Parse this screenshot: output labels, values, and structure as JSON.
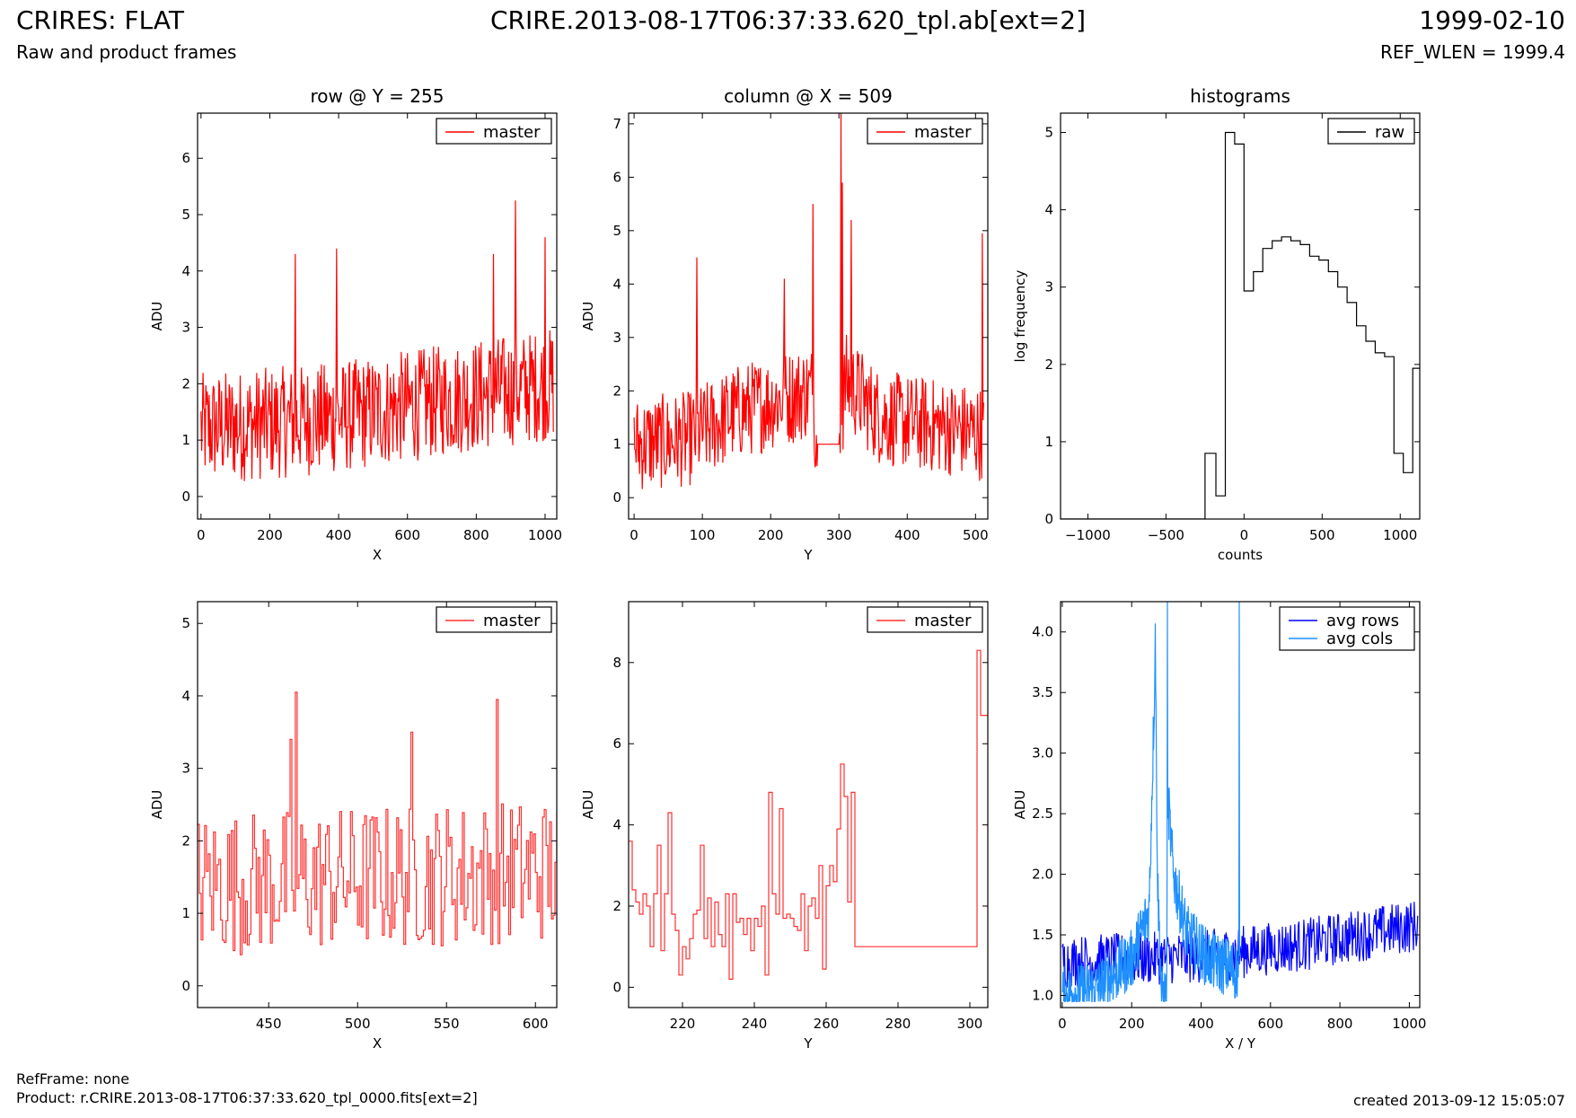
{
  "header": {
    "title": "CRIRES: FLAT",
    "subtitle": "Raw and product frames",
    "filename": "CRIRE.2013-08-17T06:37:33.620_tpl.ab[ext=2]",
    "date": "1999-02-10",
    "ref_wlen": "REF_WLEN = 1999.4"
  },
  "footer": {
    "refframe": "RefFrame: none",
    "product": "Product: r.CRIRE.2013-08-17T06:37:33.620_tpl_0000.fits[ext=2]",
    "created": "created 2013-09-12 15:05:07"
  },
  "colors": {
    "master": "#ff0000",
    "raw": "#000000",
    "avg_rows": "#0000ff",
    "avg_cols": "#1e90ff"
  },
  "chart_data": [
    {
      "id": "row",
      "type": "line",
      "title": "row @ Y = 255",
      "xlabel": "X",
      "ylabel": "ADU",
      "xlim": [
        -10,
        1034
      ],
      "ylim": [
        -0.4,
        6.8
      ],
      "xticks": [
        0,
        200,
        400,
        600,
        800,
        1000
      ],
      "yticks": [
        0,
        1,
        2,
        3,
        4,
        5,
        6
      ],
      "legend": "top-right",
      "series": [
        {
          "name": "master",
          "color": "#ff0000",
          "style": "noise",
          "x0": 0,
          "x1": 1024,
          "step": 2,
          "base": [
            [
              0,
              1.2
            ],
            [
              400,
              1.4
            ],
            [
              800,
              1.8
            ],
            [
              1024,
              2.0
            ]
          ],
          "noise": 1.0,
          "min": 0.1,
          "max": 4.6,
          "spikes": [
            [
              275,
              4.3
            ],
            [
              395,
              4.4
            ],
            [
              915,
              5.25
            ],
            [
              1000,
              4.6
            ],
            [
              850,
              4.3
            ]
          ]
        }
      ]
    },
    {
      "id": "column",
      "type": "line",
      "title": "column @ X = 509",
      "xlabel": "Y",
      "ylabel": "ADU",
      "xlim": [
        -8,
        518
      ],
      "ylim": [
        -0.4,
        7.2
      ],
      "xticks": [
        0,
        100,
        200,
        300,
        400,
        500
      ],
      "yticks": [
        0,
        1,
        2,
        3,
        4,
        5,
        6,
        7
      ],
      "legend": "top-right",
      "series": [
        {
          "name": "master",
          "color": "#ff0000",
          "style": "noise",
          "x0": 0,
          "x1": 512,
          "step": 1,
          "base": [
            [
              0,
              1.0
            ],
            [
              80,
              1.1
            ],
            [
              150,
              1.6
            ],
            [
              260,
              2.0
            ],
            [
              269,
              1.0
            ],
            [
              300,
              1.0
            ],
            [
              310,
              2.2
            ],
            [
              360,
              1.5
            ],
            [
              512,
              1.2
            ]
          ],
          "noise": 0.9,
          "min": 0.15,
          "max": 4.5,
          "flat": [
            [
              269,
              300,
              1.0
            ]
          ],
          "spikes": [
            [
              92,
              4.5
            ],
            [
              220,
              4.1
            ],
            [
              262,
              5.5
            ],
            [
              303,
              7.2
            ],
            [
              305,
              5.9
            ],
            [
              318,
              5.2
            ],
            [
              510,
              4.95
            ]
          ]
        }
      ]
    },
    {
      "id": "histogram",
      "type": "step",
      "title": "histograms",
      "xlabel": "counts",
      "ylabel": "log frequency",
      "xlim": [
        -1175,
        1125
      ],
      "ylim": [
        0,
        5.25
      ],
      "xticks": [
        -1000,
        -500,
        0,
        500,
        1000
      ],
      "yticks": [
        0,
        1,
        2,
        3,
        4,
        5
      ],
      "legend": "top-right",
      "series": [
        {
          "name": "raw",
          "color": "#000000",
          "edges": [
            -1175,
            -250,
            -180,
            -120,
            -60,
            0,
            60,
            120,
            180,
            240,
            300,
            360,
            420,
            480,
            540,
            600,
            660,
            720,
            780,
            840,
            900,
            960,
            1020,
            1080,
            1125
          ],
          "values": [
            0,
            0.85,
            0.3,
            5.0,
            4.85,
            2.95,
            3.2,
            3.5,
            3.6,
            3.65,
            3.6,
            3.55,
            3.4,
            3.35,
            3.2,
            3.0,
            2.8,
            2.5,
            2.3,
            2.15,
            2.1,
            0.85,
            0.6,
            1.95
          ]
        }
      ]
    },
    {
      "id": "row-zoom",
      "type": "step",
      "xlabel": "X",
      "ylabel": "ADU",
      "xlim": [
        410,
        612
      ],
      "ylim": [
        -0.3,
        5.3
      ],
      "xticks": [
        450,
        500,
        550,
        600
      ],
      "yticks": [
        0,
        1,
        2,
        3,
        4,
        5
      ],
      "legend": "top-right",
      "series": [
        {
          "name": "master",
          "color": "#ff3030",
          "style": "noise",
          "x0": 410,
          "x1": 612,
          "step": 1,
          "base": [
            [
              410,
              1.4
            ],
            [
              612,
              1.6
            ]
          ],
          "noise": 1.0,
          "min": 0.1,
          "max": 3.5,
          "spikes": [
            [
              465,
              4.05
            ],
            [
              530,
              3.5
            ],
            [
              578,
              3.95
            ],
            [
              462,
              3.4
            ]
          ]
        }
      ]
    },
    {
      "id": "column-zoom",
      "type": "step",
      "xlabel": "Y",
      "ylabel": "ADU",
      "xlim": [
        205,
        305
      ],
      "ylim": [
        -0.5,
        9.5
      ],
      "xticks": [
        220,
        240,
        260,
        280,
        300
      ],
      "yticks": [
        0,
        2,
        4,
        6,
        8
      ],
      "legend": "top-right",
      "series": [
        {
          "name": "master",
          "color": "#ff3030",
          "x": [
            205,
            206,
            207,
            208,
            209,
            210,
            211,
            212,
            213,
            214,
            215,
            216,
            217,
            218,
            219,
            220,
            221,
            222,
            223,
            224,
            225,
            226,
            227,
            228,
            229,
            230,
            231,
            232,
            233,
            234,
            235,
            236,
            237,
            238,
            239,
            240,
            241,
            242,
            243,
            244,
            245,
            246,
            247,
            248,
            249,
            250,
            251,
            252,
            253,
            254,
            255,
            256,
            257,
            258,
            259,
            260,
            261,
            262,
            263,
            264,
            265,
            266,
            267,
            268,
            269,
            302,
            303,
            304,
            305
          ],
          "y": [
            3.6,
            2.4,
            2.1,
            1.8,
            2.3,
            2.0,
            1.0,
            2.3,
            3.5,
            0.9,
            2.3,
            4.3,
            1.8,
            1.4,
            0.3,
            1.0,
            0.7,
            1.2,
            1.8,
            1.9,
            3.5,
            1.2,
            2.2,
            1.0,
            2.1,
            1.3,
            1.0,
            2.3,
            0.2,
            2.3,
            1.6,
            1.7,
            1.3,
            1.7,
            0.9,
            1.7,
            1.5,
            2.0,
            0.3,
            4.8,
            2.3,
            1.8,
            4.4,
            1.7,
            1.8,
            1.7,
            1.5,
            1.4,
            2.3,
            0.9,
            2.0,
            2.2,
            1.7,
            3.0,
            0.45,
            2.5,
            3.0,
            2.6,
            3.9,
            5.5,
            4.7,
            2.1,
            4.8,
            1.0,
            1.0,
            8.3,
            6.7,
            6.7,
            6.7
          ]
        }
      ]
    },
    {
      "id": "averages",
      "type": "line",
      "xlabel": "X / Y",
      "ylabel": "ADU",
      "xlim": [
        -5,
        1030
      ],
      "ylim": [
        0.9,
        4.25
      ],
      "xticks": [
        0,
        200,
        400,
        600,
        800,
        1000
      ],
      "yticks": [
        1.0,
        1.5,
        2.0,
        2.5,
        3.0,
        3.5,
        4.0
      ],
      "legend": "top-right",
      "series": [
        {
          "name": "avg rows",
          "color": "#0000ff",
          "style": "noise",
          "x0": 0,
          "x1": 1024,
          "step": 2,
          "base": [
            [
              0,
              1.28
            ],
            [
              400,
              1.32
            ],
            [
              700,
              1.42
            ],
            [
              1024,
              1.58
            ]
          ],
          "noise": 0.22,
          "min": 1.05,
          "max": 1.85
        },
        {
          "name": "avg cols",
          "color": "#1e90ff",
          "style": "noise",
          "x0": 0,
          "x1": 512,
          "step": 1,
          "base": [
            [
              0,
              1.0
            ],
            [
              100,
              1.05
            ],
            [
              200,
              1.3
            ],
            [
              250,
              1.7
            ],
            [
              268,
              3.8
            ],
            [
              275,
              1.9
            ],
            [
              286,
              1.0
            ],
            [
              300,
              1.0
            ],
            [
              305,
              2.6
            ],
            [
              320,
              2.0
            ],
            [
              360,
              1.5
            ],
            [
              420,
              1.3
            ],
            [
              505,
              1.2
            ],
            [
              512,
              1.2
            ]
          ],
          "noise": 0.25,
          "min": 0.95,
          "max": 4.25,
          "spikes": [
            [
              268,
              4.07
            ],
            [
              303,
              4.25
            ],
            [
              510,
              4.25
            ]
          ]
        }
      ]
    }
  ]
}
